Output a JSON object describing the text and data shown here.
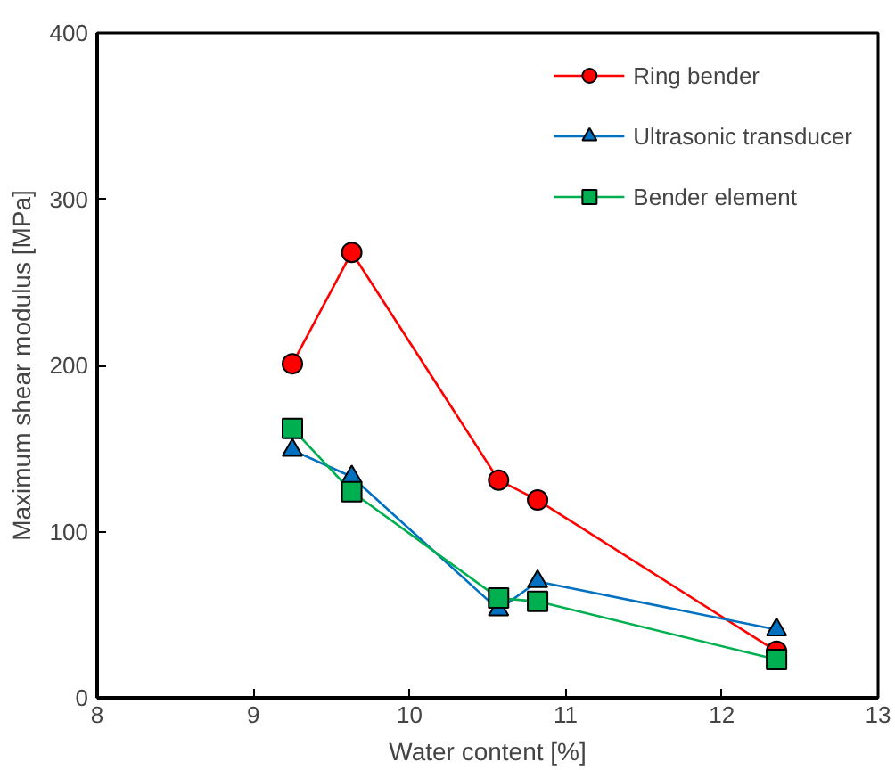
{
  "chart_data": {
    "type": "line",
    "xlabel": "Water content [%]",
    "ylabel": "Maximum shear modulus [MPa]",
    "xlim": [
      8,
      13
    ],
    "xticks": [
      8,
      9,
      10,
      11,
      12,
      13
    ],
    "ylim": [
      0,
      400
    ],
    "yticks": [
      0,
      100,
      200,
      300,
      400
    ],
    "grid": false,
    "legend": "top right",
    "series": [
      {
        "name": "Ring bender",
        "color": "#ff0000",
        "marker": "circle",
        "x": [
          9.25,
          9.63,
          10.57,
          10.82,
          12.35
        ],
        "values": [
          201,
          268,
          131,
          119,
          28
        ]
      },
      {
        "name": "Ultrasonic transducer",
        "color": "#0070c0",
        "marker": "triangle",
        "x": [
          9.25,
          9.63,
          10.57,
          10.82,
          12.35
        ],
        "values": [
          149,
          133,
          53,
          70,
          41
        ]
      },
      {
        "name": "Bender element",
        "color": "#00b050",
        "marker": "square",
        "x": [
          9.25,
          9.63,
          10.57,
          10.82,
          12.35
        ],
        "values": [
          162,
          124,
          60,
          58,
          23
        ]
      }
    ]
  }
}
